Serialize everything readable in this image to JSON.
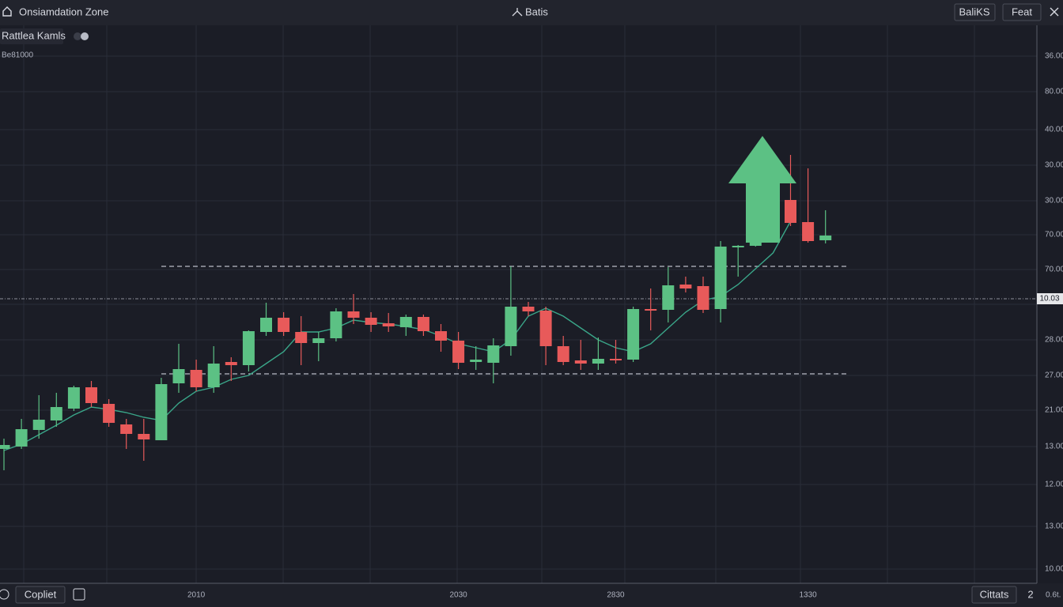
{
  "header": {
    "title": "Onsiamdation Zone",
    "center": "Batis",
    "buttons": [
      "BaliKS",
      "Feat"
    ]
  },
  "toolbar": {
    "symbol": "Rattlea Kamls",
    "sub": "Be81000"
  },
  "footer": {
    "left_button": "Copliet",
    "right_button": "Cittats",
    "page": "2",
    "right_text": "0.6t."
  },
  "chart_data": {
    "type": "candlestick",
    "categories": [
      null,
      null,
      null,
      null,
      null,
      null,
      null,
      null,
      null,
      null,
      null,
      "2010",
      null,
      null,
      null,
      null,
      null,
      null,
      null,
      null,
      null,
      null,
      null,
      null,
      null,
      null,
      "2030",
      null,
      null,
      null,
      null,
      null,
      null,
      null,
      null,
      "2830",
      null,
      null,
      null,
      null,
      null,
      null,
      null,
      null,
      null,
      null,
      "1330",
      null
    ],
    "open": [
      167,
      170,
      191,
      203,
      218,
      245,
      224,
      198,
      186,
      178,
      250,
      267,
      245,
      277,
      273,
      315,
      333,
      315,
      301,
      307,
      341,
      333,
      326,
      321,
      334,
      316,
      304,
      277,
      276,
      297,
      347,
      342,
      297,
      279,
      275,
      281,
      280,
      344,
      343,
      375,
      373,
      344,
      422,
      424,
      null,
      482,
      454,
      431
    ],
    "high": [
      180,
      205,
      235,
      238,
      247,
      253,
      230,
      205,
      205,
      257,
      300,
      280,
      297,
      283,
      317,
      352,
      340,
      335,
      315,
      345,
      363,
      340,
      339,
      337,
      337,
      325,
      315,
      297,
      307,
      398,
      353,
      347,
      310,
      305,
      308,
      305,
      347,
      370,
      397,
      385,
      385,
      430,
      425,
      450,
      null,
      539,
      522,
      469
    ],
    "low": [
      140,
      167,
      180,
      195,
      215,
      220,
      195,
      167,
      152,
      178,
      238,
      240,
      238,
      253,
      265,
      310,
      310,
      273,
      278,
      303,
      325,
      315,
      315,
      310,
      310,
      290,
      268,
      267,
      250,
      285,
      335,
      273,
      273,
      267,
      267,
      275,
      277,
      317,
      327,
      365,
      339,
      327,
      385,
      423,
      null,
      449,
      428,
      427
    ],
    "close": [
      172,
      192,
      204,
      220,
      245,
      225,
      200,
      186,
      179,
      249,
      268,
      245,
      275,
      273,
      316,
      333,
      315,
      301,
      307,
      341,
      333,
      324,
      322,
      334,
      316,
      304,
      276,
      280,
      298,
      347,
      341,
      297,
      277,
      275,
      281,
      279,
      344,
      342,
      374,
      370,
      343,
      423,
      424,
      428,
      null,
      453,
      430,
      437
    ],
    "up_color": "#5cc184",
    "down_color": "#e85a5a",
    "ylim": [
      0,
      700
    ],
    "y_axis_labels": [
      "36.00",
      "80.00",
      "40.00",
      "30.00",
      "30.00",
      "70.00",
      "70.00",
      "28.00",
      "27.00",
      "21.00",
      "13.00",
      "12.00",
      "13.00",
      "10.00"
    ],
    "moving_average": {
      "color": "#3aa689",
      "values": [
        165,
        173,
        185,
        197,
        210,
        220,
        217,
        213,
        207,
        203,
        225,
        240,
        245,
        255,
        260,
        275,
        290,
        315,
        315,
        320,
        330,
        327,
        325,
        322,
        318,
        310,
        300,
        295,
        290,
        305,
        335,
        345,
        335,
        320,
        305,
        295,
        290,
        300,
        320,
        340,
        355,
        360,
        375,
        395,
        415,
        455,
        null,
        null
      ]
    },
    "levels": [
      398,
      262
    ],
    "price_line": 357,
    "price_label": "10.03"
  }
}
